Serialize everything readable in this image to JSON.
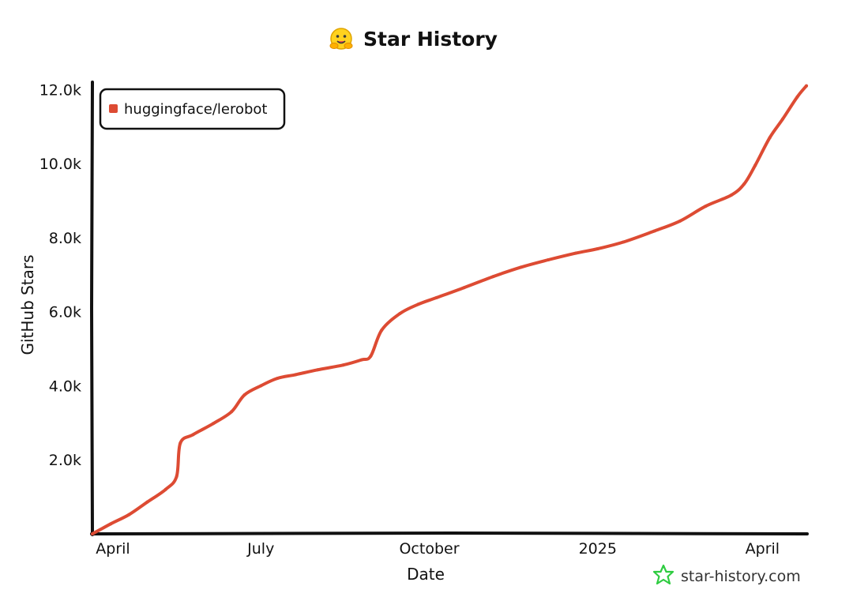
{
  "chart_data": {
    "type": "line",
    "title": "Star History",
    "xlabel": "Date",
    "ylabel": "GitHub Stars",
    "x_ticks": [
      "April",
      "July",
      "October",
      "2025",
      "April"
    ],
    "y_ticks": [
      "2.0k",
      "4.0k",
      "6.0k",
      "8.0k",
      "10.0k",
      "12.0k"
    ],
    "ylim": [
      0,
      12200
    ],
    "legend_position": "top-left",
    "series": [
      {
        "name": "huggingface/lerobot",
        "color": "#dd4b33",
        "points": [
          [
            "2024-03-31",
            0
          ],
          [
            "2024-04-10",
            270
          ],
          [
            "2024-04-20",
            520
          ],
          [
            "2024-04-30",
            860
          ],
          [
            "2024-05-10",
            1200
          ],
          [
            "2024-05-16",
            1550
          ],
          [
            "2024-05-18",
            2450
          ],
          [
            "2024-05-25",
            2680
          ],
          [
            "2024-06-05",
            2980
          ],
          [
            "2024-06-15",
            3300
          ],
          [
            "2024-06-22",
            3750
          ],
          [
            "2024-07-01",
            4000
          ],
          [
            "2024-07-10",
            4200
          ],
          [
            "2024-07-20",
            4300
          ],
          [
            "2024-08-01",
            4430
          ],
          [
            "2024-08-15",
            4560
          ],
          [
            "2024-08-25",
            4700
          ],
          [
            "2024-08-30",
            4800
          ],
          [
            "2024-09-05",
            5500
          ],
          [
            "2024-09-15",
            5950
          ],
          [
            "2024-09-25",
            6200
          ],
          [
            "2024-10-05",
            6380
          ],
          [
            "2024-10-20",
            6650
          ],
          [
            "2024-11-05",
            6950
          ],
          [
            "2024-11-20",
            7200
          ],
          [
            "2024-12-05",
            7400
          ],
          [
            "2024-12-20",
            7580
          ],
          [
            "2025-01-01",
            7700
          ],
          [
            "2025-01-15",
            7880
          ],
          [
            "2025-02-01",
            8180
          ],
          [
            "2025-02-15",
            8450
          ],
          [
            "2025-03-01",
            8850
          ],
          [
            "2025-03-15",
            9150
          ],
          [
            "2025-03-22",
            9450
          ],
          [
            "2025-03-28",
            9950
          ],
          [
            "2025-04-05",
            10700
          ],
          [
            "2025-04-12",
            11200
          ],
          [
            "2025-04-20",
            11800
          ],
          [
            "2025-04-25",
            12100
          ]
        ]
      }
    ]
  },
  "watermark": {
    "text": "star-history.com",
    "icon": "star-icon",
    "icon_color": "#2ecc40"
  },
  "title_icon": "hugging-face-emoji-icon"
}
